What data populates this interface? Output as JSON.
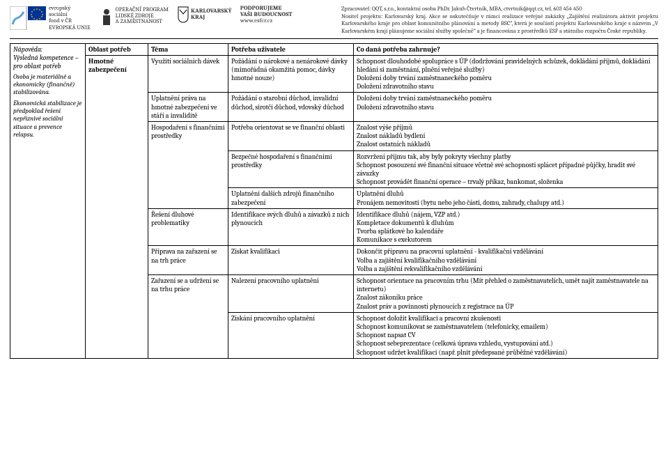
{
  "header": {
    "line1": "Zpracovatel: QQT, s.r.o., kontaktní osoba PhDr. Jakub Čtvrtník, MBA, ctvrtnik@qqt.cz, tel. 603 454 450",
    "line2": "Nositel projektu: Karlovarský kraj. Akce se uskutečňuje v rámci realizace veřejné zakázky „Zajištění realizátora aktivit projektu Karlovarského kraje pro oblast komunitního plánování a metody BSC“, která je součástí projektu Karlovarského kraje s názvem „V Karlovarském kraji plánujeme sociální služby společně“ a je financována z prostředků ESF a státního rozpočtu České republiky.",
    "logos": {
      "esf_line1": "evropský",
      "esf_line2": "sociální",
      "esf_line3": "fond v ČR",
      "eu": "EVROPSKÁ UNIE",
      "op1": "OPERAČNÍ PROGRAM",
      "op2": "LIDSKÉ ZDROJE",
      "op3": "A ZAMĚSTNANOST",
      "kk1": "KARLOVARSKÝ",
      "kk2": "KRAJ",
      "sup1": "PODPORUJEME",
      "sup2": "VAŠI BUDOUCNOST",
      "sup3": "www.esfcr.cz"
    }
  },
  "side": {
    "title1": "Nápověda:",
    "title2": "Výsledná kompetence – pro oblast potřeb",
    "para1": "Osoba je materiálně a ekonomicky (finančně) stabilizována.",
    "para2": "Ekonomická stabilizace je předpoklad řešení nepříznivé sociální situace a prevence relapsu."
  },
  "cols": [
    "Oblast potřeb",
    "Téma",
    "Potřeba uživatele",
    "Co daná potřeba zahrnuje?"
  ],
  "oblast": "Hmotné zabezpečení",
  "rows": [
    {
      "tema": "Využití sociálních dávek",
      "potreba": "Požádání o nárokové a nenárokové dávky (mimořádná okamžitá pomoc, dávky hmotné nouze)",
      "zahr": "Schopnost dlouhodobé spolupráce s ÚP (dodržování pravidelných schůzek, dokládání příjmů, dokládání hledání si zaměstnání, plnění veřejné služby)\nDoložení doby trvání zaměstnaneckého poměru\nDoložení zdravotního stavu"
    },
    {
      "tema": "Uplatnění práva na hmotné zabezpečení ve stáří a invaliditě",
      "potreba": "Požádání o starobní důchod, invalidní důchod, sirotčí důchod, vdovský důchod",
      "zahr": "Doložení doby trvání zaměstnaneckého poměru\nDoložení zdravotního stavu"
    },
    {
      "tema": "Hospodaření s finančními prostředky",
      "tema_rowspan": 3,
      "potreba": "Potřeba orientovat se ve finanční oblasti",
      "zahr": "Znalost výše příjmů\nZnalost nákladů bydlení\nZnalost ostatních nákladů"
    },
    {
      "potreba": "Bezpečné hospodaření s finančními prostředky",
      "zahr": "Rozvržení příjmu tak, aby byly pokryty všechny platby\nSchopnost posouzení své finanční situace včetně své schopnosti splácet případné půjčky, hradit své závazky\nSchopnost provádět finanční operace – trvalý příkaz, bankomat, složenka"
    },
    {
      "potreba": "Uplatnění dalších zdrojů finančního zabezpečení",
      "zahr": "Uplatnění dluhů\nPronájem nemovitosti (bytu nebo jeho části, domu, zahrady, chalupy atd.)"
    },
    {
      "tema": "Řešení dluhové problematiky",
      "potreba": "Identifikace svých dluhů a závazků z nich plynoucích",
      "zahr": "Identifikace dluhů (nájem, VZP atd.)\nKompletace dokumentů k dluhům\nTvorba splátkové ho kalendáře\nKomunikace s exekutorem"
    },
    {
      "tema": "Příprava na zařazení se na trh práce",
      "potreba": "Získat kvalifikaci",
      "zahr": "Dokončit přípravu na pracovní uplatnění - kvalifikační vzdělávání\nVolba a zajištění kvalifikačního vzdělávání\nVolba a zajištění rekvalifikačního vzdělávání"
    },
    {
      "tema": "Zařazení se a udržení se na trhu práce",
      "tema_rowspan": 2,
      "potreba": "Nalezení pracovního uplatnění",
      "zahr": "Schopnost orientace na pracovním trhu (Mít přehled o zaměstnavatelích, umět najít zaměstnavatele na internetu)\nZnalost zákoníku práce\nZnalost práv a povinností plynoucích z registrace na ÚP"
    },
    {
      "potreba": "Získání pracovního uplatnění",
      "zahr": "Schopnost doložit kvalifikaci a pracovní zkušenosti\nSchopnost komunikovat se zaměstnavatelem (telefonicky, emailem)\nSchopnost napsat CV\nSchopnost sebeprezentace (celková úprava vzhledu, vystupování atd.)\nSchopnost udržet kvalifikaci (např. plnit předepsané průběžné vzdělávání)"
    }
  ]
}
